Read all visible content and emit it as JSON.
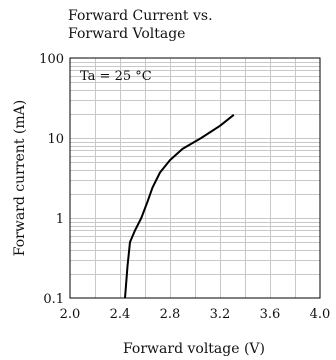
{
  "chart_data": {
    "type": "line",
    "title": [
      "Forward Current vs.",
      "Forward Voltage"
    ],
    "xlabel": "Forward voltage (V)",
    "ylabel": "Forward current (mA)",
    "xlim": [
      2.0,
      4.0
    ],
    "ylim": [
      0.1,
      100
    ],
    "yscale": "log",
    "grid": true,
    "xticks": [
      "2.0",
      "2.4",
      "2.8",
      "3.2",
      "3.6",
      "4.0"
    ],
    "yticks": [
      "0.1",
      "1",
      "10",
      "100"
    ],
    "annotation": "Ta = 25 °C",
    "series": [
      {
        "x": [
          2.44,
          2.46,
          2.48,
          2.52,
          2.57,
          2.62,
          2.66,
          2.72,
          2.8,
          2.9,
          3.05,
          3.2,
          3.31
        ],
        "y": [
          0.1,
          0.25,
          0.5,
          0.7,
          1.0,
          1.6,
          2.4,
          3.7,
          5.3,
          7.3,
          10.0,
          14.2,
          19.5
        ]
      }
    ],
    "colors": {
      "line": "#000000",
      "grid": "#c8c8c8",
      "frame": "#000000"
    }
  }
}
